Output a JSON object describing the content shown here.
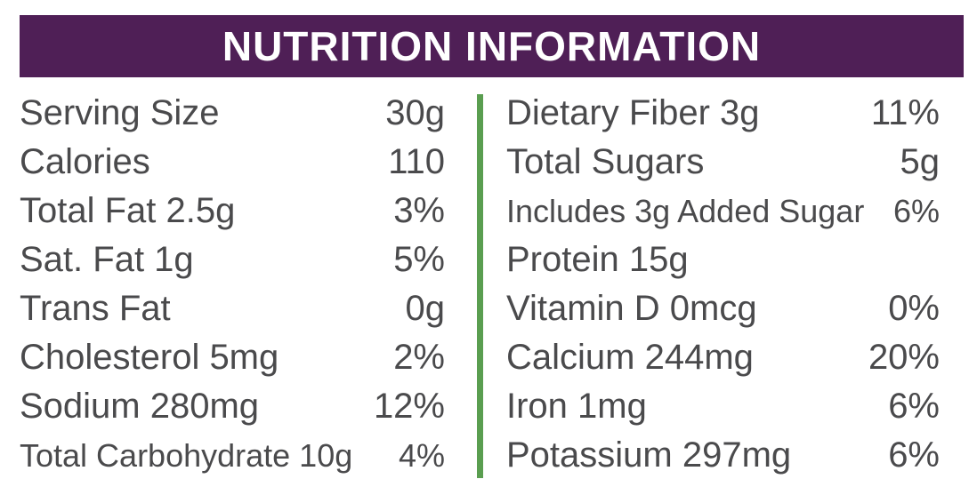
{
  "header": {
    "title": "NUTRITION INFORMATION",
    "bg_color": "#4f1f56",
    "text_color": "#ffffff"
  },
  "style": {
    "divider_color": "#5a9e50",
    "body_text_color": "#4a4a4c"
  },
  "columns": {
    "left": [
      {
        "label": "Serving Size",
        "value": "30g"
      },
      {
        "label": "Calories",
        "value": "110"
      },
      {
        "label": "Total Fat 2.5g",
        "value": "3%"
      },
      {
        "label": "Sat. Fat 1g",
        "value": "5%"
      },
      {
        "label": "Trans Fat",
        "value": "0g"
      },
      {
        "label": "Cholesterol 5mg",
        "value": "2%"
      },
      {
        "label": "Sodium 280mg",
        "value": "12%"
      },
      {
        "label": "Total Carbohydrate 10g",
        "value": "4%"
      }
    ],
    "right": [
      {
        "label": "Dietary Fiber 3g",
        "value": "11%"
      },
      {
        "label": "Total Sugars",
        "value": "5g"
      },
      {
        "label": "Includes 3g Added Sugar",
        "value": "6%"
      },
      {
        "label": "Protein 15g",
        "value": ""
      },
      {
        "label": "Vitamin D 0mcg",
        "value": "0%"
      },
      {
        "label": "Calcium 244mg",
        "value": "20%"
      },
      {
        "label": "Iron 1mg",
        "value": "6%"
      },
      {
        "label": "Potassium 297mg",
        "value": "6%"
      }
    ]
  }
}
